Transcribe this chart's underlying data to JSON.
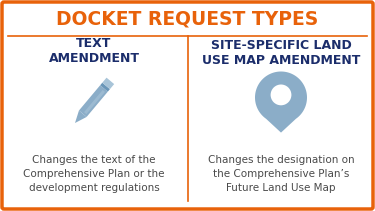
{
  "title": "DOCKET REQUEST TYPES",
  "title_color": "#E8620A",
  "title_fontsize": 13.5,
  "bg_color": "#FFFFFF",
  "border_color": "#E8620A",
  "divider_color": "#E8620A",
  "left_heading": "TEXT\nAMENDMENT",
  "right_heading": "SITE-SPECIFIC LAND\nUSE MAP AMENDMENT",
  "heading_color": "#1B2D6B",
  "heading_fontsize": 9,
  "left_desc": "Changes the text of the\nComprehensive Plan or the\ndevelopment regulations",
  "right_desc": "Changes the designation on\nthe Comprehensive Plan’s\nFuture Land Use Map",
  "desc_color": "#4A4A4A",
  "desc_fontsize": 7.5,
  "icon_color": "#8BADC8",
  "icon_color_light": "#A8C4D8",
  "icon_color_dark": "#6A96B8"
}
